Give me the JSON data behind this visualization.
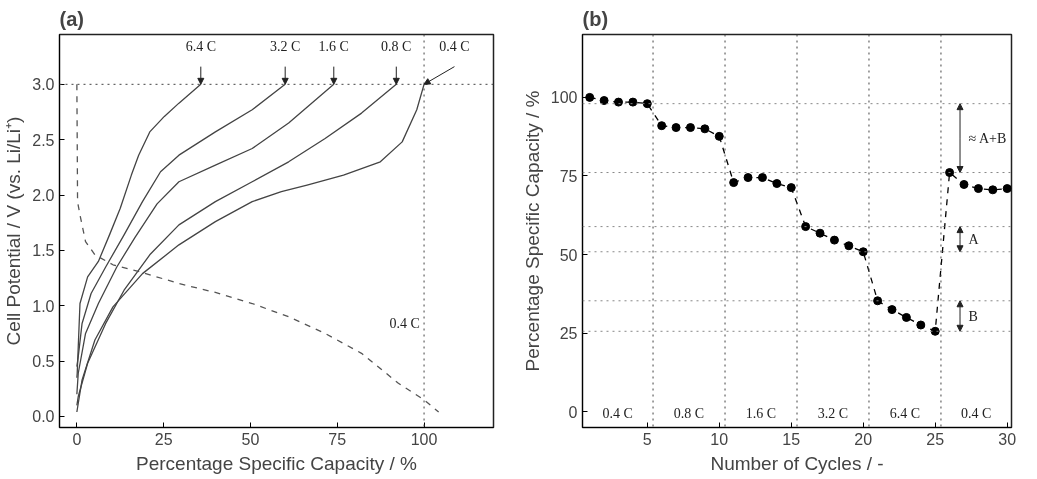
{
  "chart_data": [
    {
      "type": "line",
      "title": "(a)",
      "xlabel": "Percentage Specific Capacity / %",
      "ylabel": "Cell Potential / V (vs. Li/Li⁺)",
      "xlim": [
        -5,
        120
      ],
      "ylim": [
        -0.1,
        3.45
      ],
      "xticks": [
        0,
        25,
        50,
        75,
        100
      ],
      "yticks": [
        {
          "value": 0,
          "label": "0.0"
        },
        0.5,
        {
          "value": 1,
          "label": "1.0"
        },
        1.5,
        {
          "value": 2,
          "label": "2.0"
        },
        2.5,
        {
          "value": 3,
          "label": "3.0"
        }
      ],
      "series": [
        {
          "name": "6.4 C",
          "color": "#444444",
          "line_style": "solid",
          "x": [
            0,
            0.1,
            0.4,
            0.9,
            3.1,
            6.2,
            9.4,
            12.5,
            15.7,
            17.8,
            21,
            25.2,
            29.4,
            35.7
          ],
          "values": [
            0.35,
            0.39,
            0.63,
            1.02,
            1.26,
            1.4,
            1.64,
            1.88,
            2.18,
            2.36,
            2.57,
            2.71,
            2.83,
            3.0
          ]
        },
        {
          "name": "3.2 C",
          "color": "#444444",
          "line_style": "solid",
          "x": [
            0,
            0.4,
            1.5,
            4.1,
            8.3,
            13.6,
            18.9,
            24.1,
            29.4,
            39.9,
            50.5,
            60
          ],
          "values": [
            0.45,
            0.54,
            0.84,
            1.11,
            1.35,
            1.64,
            1.94,
            2.21,
            2.36,
            2.57,
            2.77,
            3.0
          ]
        },
        {
          "name": "1.6 C",
          "color": "#444444",
          "line_style": "solid",
          "x": [
            0,
            0.4,
            2.5,
            6.2,
            11.5,
            16.8,
            23.1,
            29.4,
            39.9,
            50.5,
            61,
            74
          ],
          "values": [
            0.2,
            0.39,
            0.75,
            1.02,
            1.35,
            1.62,
            1.92,
            2.12,
            2.27,
            2.42,
            2.65,
            3.0
          ]
        },
        {
          "name": "0.8 C",
          "color": "#444444",
          "line_style": "solid",
          "x": [
            0,
            0.4,
            3.1,
            8.3,
            13.6,
            21,
            29.4,
            39.9,
            50.5,
            61,
            71.5,
            82,
            92
          ],
          "values": [
            0.1,
            0.18,
            0.48,
            0.84,
            1.14,
            1.46,
            1.73,
            1.94,
            2.12,
            2.3,
            2.51,
            2.74,
            3.0
          ]
        },
        {
          "name": "0.4 C",
          "color": "#444444",
          "line_style": "solid",
          "x": [
            0,
            1.5,
            5.2,
            10.4,
            18.9,
            29.4,
            39.9,
            50.5,
            58.9,
            66.3,
            76.8,
            87.4,
            93.7,
            97.9,
            100
          ],
          "values": [
            0.04,
            0.33,
            0.69,
            0.99,
            1.29,
            1.55,
            1.76,
            1.94,
            2.03,
            2.09,
            2.18,
            2.3,
            2.48,
            2.77,
            3.0
          ]
        },
        {
          "name": "0.4 C",
          "color": "#555555",
          "line_style": "dashed",
          "x": [
            0,
            0.1,
            0.2,
            0.9,
            2.5,
            5.2,
            10.4,
            18.9,
            29.4,
            39.9,
            50.5,
            61,
            71.5,
            82,
            92.6,
            100,
            104.2
          ],
          "values": [
            3.0,
            2.5,
            1.94,
            1.82,
            1.58,
            1.46,
            1.37,
            1.3,
            1.2,
            1.12,
            1.02,
            0.9,
            0.75,
            0.57,
            0.3,
            0.15,
            0.04
          ]
        }
      ],
      "ref_lines": [
        {
          "axis": "y",
          "value": 3.0,
          "color": "#444444",
          "line_style": "dotted"
        },
        {
          "axis": "x",
          "value": 100,
          "color": "#444444",
          "line_style": "dotted"
        }
      ]
    },
    {
      "type": "line",
      "title": "(b)",
      "xlabel": "Number of Cycles / -",
      "ylabel": "Percentage Specific Capacity / %",
      "xlim": [
        0.5,
        30.3
      ],
      "ylim": [
        -5,
        120
      ],
      "xticks": [
        5,
        10,
        15,
        20,
        25,
        30
      ],
      "yticks": [
        0,
        25,
        50,
        75,
        100
      ],
      "marker": "circle",
      "line_style": "dashed",
      "series": [
        {
          "color": "#000000",
          "x": [
            1,
            2,
            3,
            4,
            5,
            6,
            7,
            8,
            9,
            10,
            11,
            12,
            13,
            14,
            15,
            16,
            17,
            18,
            19,
            20,
            21,
            22,
            23,
            24,
            25,
            26,
            27,
            28,
            29,
            30
          ],
          "values": [
            100,
            99,
            98.5,
            98.5,
            98,
            91,
            90.4,
            90.4,
            90,
            87.6,
            72.9,
            74.5,
            74.5,
            72.6,
            71.3,
            58.9,
            56.8,
            54.6,
            52.8,
            50.9,
            35.3,
            32.5,
            30,
            27.6,
            25.6,
            76.1,
            72.3,
            71,
            70.6,
            71
          ]
        }
      ],
      "ref_lines": [
        {
          "axis": "x",
          "value": 5.4,
          "color": "#444444",
          "line_style": "dotted"
        },
        {
          "axis": "x",
          "value": 10.4,
          "color": "#444444",
          "line_style": "dotted"
        },
        {
          "axis": "x",
          "value": 15.4,
          "color": "#444444",
          "line_style": "dotted"
        },
        {
          "axis": "x",
          "value": 20.4,
          "color": "#444444",
          "line_style": "dotted"
        },
        {
          "axis": "x",
          "value": 25.4,
          "color": "#444444",
          "line_style": "dotted"
        },
        {
          "axis": "y",
          "value": 98,
          "label": "≈ A+B",
          "color": "#888888",
          "line_style": "dotted"
        },
        {
          "axis": "y",
          "value": 76.1,
          "color": "#888888",
          "line_style": "dotted"
        },
        {
          "axis": "y",
          "value": 58.9,
          "label": "A",
          "color": "#888888",
          "line_style": "dotted"
        },
        {
          "axis": "y",
          "value": 50.9,
          "color": "#888888",
          "line_style": "dotted"
        },
        {
          "axis": "y",
          "value": 35.3,
          "label": "B",
          "color": "#888888",
          "line_style": "dotted"
        },
        {
          "axis": "y",
          "value": 25.6,
          "color": "#888888",
          "line_style": "dotted"
        }
      ],
      "annotations": [
        "0.4 C",
        "0.8 C",
        "1.6 C",
        "3.2 C",
        "6.4 C",
        "0.4 C"
      ]
    }
  ]
}
